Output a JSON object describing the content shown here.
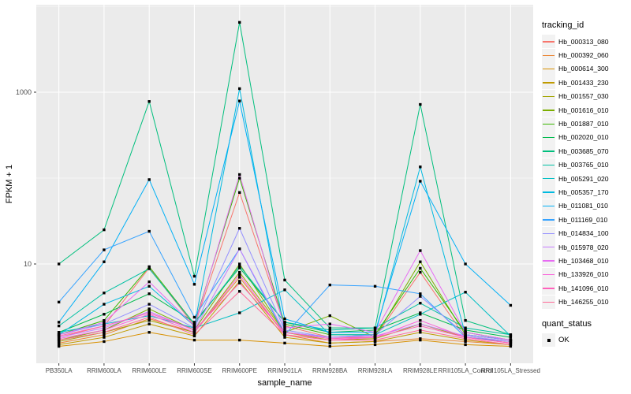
{
  "chart_data": {
    "type": "line",
    "title": "",
    "xlabel": "sample_name",
    "ylabel": "FPKM + 1",
    "y_scale": "log10",
    "y_axis_ticks": [
      {
        "label": "10",
        "value": 10
      },
      {
        "label": "1000",
        "value": 1000
      }
    ],
    "y_minor_gridlines": [
      100,
      10000
    ],
    "legend_position": "right",
    "panel_bg": "#EBEBEB",
    "grid_color": "#FFFFFF",
    "tick_label_color": "#4D4D4D",
    "point_marker": "black-square",
    "series_legend_title": "tracking_id",
    "point_legend": {
      "title": "quant_status",
      "items": [
        {
          "label": "OK",
          "marker": "black-square"
        }
      ]
    },
    "categories": [
      "PB350LA",
      "RRIM600LA",
      "RRIM600LE",
      "RRIM600SE",
      "RRIM600PE",
      "RRIM901LA",
      "RRIM928BA",
      "RRIM928LA",
      "RRIM928LE",
      "RRII105LA_Control",
      "RRII105LA_Stressed"
    ],
    "series": [
      {
        "name": "Hb_000313_080",
        "color": "#F8766D",
        "values": [
          1.4,
          1.9,
          9.0,
          1.9,
          68,
          1.9,
          1.4,
          1.4,
          8.0,
          1.4,
          1.2
        ]
      },
      {
        "name": "Hb_000392_060",
        "color": "#EA8331",
        "values": [
          1.2,
          1.5,
          2.3,
          1.6,
          7.0,
          1.5,
          1.2,
          1.25,
          1.35,
          1.25,
          1.15
        ]
      },
      {
        "name": "Hb_000614_300",
        "color": "#D89000",
        "values": [
          1.1,
          1.25,
          1.6,
          1.3,
          1.3,
          1.2,
          1.1,
          1.15,
          1.3,
          1.15,
          1.1
        ]
      },
      {
        "name": "Hb_001433_230",
        "color": "#C09B00",
        "values": [
          1.15,
          1.4,
          2.0,
          1.45,
          6.3,
          1.4,
          1.2,
          1.25,
          1.6,
          1.3,
          1.15
        ]
      },
      {
        "name": "Hb_001557_030",
        "color": "#A3A500",
        "values": [
          1.25,
          1.6,
          2.2,
          1.6,
          8.0,
          1.6,
          1.3,
          1.35,
          2.0,
          1.4,
          1.25
        ]
      },
      {
        "name": "Hb_001616_010",
        "color": "#7CAE00",
        "values": [
          1.3,
          1.7,
          3.0,
          1.7,
          10,
          1.6,
          2.5,
          1.4,
          10.6,
          1.5,
          1.3
        ]
      },
      {
        "name": "Hb_001887_010",
        "color": "#39B600",
        "values": [
          1.5,
          2.2,
          9.3,
          2.0,
          100,
          2.0,
          1.5,
          1.5,
          8.9,
          1.6,
          1.3
        ]
      },
      {
        "name": "Hb_002020_010",
        "color": "#00BB4E",
        "values": [
          1.6,
          2.6,
          4.5,
          2.1,
          9.0,
          2.1,
          1.6,
          1.7,
          2.7,
          1.7,
          1.4
        ]
      },
      {
        "name": "Hb_003685_070",
        "color": "#00BF7D",
        "values": [
          10,
          25,
          780,
          7.2,
          6500,
          6.5,
          1.8,
          1.8,
          720,
          2.2,
          1.5
        ]
      },
      {
        "name": "Hb_003765_010",
        "color": "#00C1A3",
        "values": [
          1.9,
          4.6,
          8.8,
          2.0,
          9.5,
          2.1,
          1.7,
          1.8,
          3.5,
          1.8,
          1.5
        ]
      },
      {
        "name": "Hb_005291_020",
        "color": "#00BFC4",
        "values": [
          1.6,
          2.0,
          2.5,
          1.8,
          2.7,
          5.0,
          1.5,
          1.5,
          2.6,
          4.7,
          1.45
        ]
      },
      {
        "name": "Hb_005357_170",
        "color": "#00BAE0",
        "values": [
          1.5,
          3.4,
          5.5,
          1.9,
          1100,
          1.6,
          1.4,
          1.5,
          135,
          1.5,
          1.3
        ]
      },
      {
        "name": "Hb_011081_010",
        "color": "#00B0F6",
        "values": [
          2.1,
          10.6,
          96,
          5.8,
          790,
          2.3,
          1.6,
          1.6,
          92,
          10,
          3.3
        ]
      },
      {
        "name": "Hb_011169_010",
        "color": "#35A2FF",
        "values": [
          3.6,
          14.6,
          24,
          2.4,
          15,
          1.5,
          5.7,
          5.5,
          4.5,
          1.4,
          1.25
        ]
      },
      {
        "name": "Hb_014834_100",
        "color": "#9590FF",
        "values": [
          1.5,
          2.0,
          3.4,
          1.8,
          26,
          1.7,
          1.4,
          1.5,
          4.2,
          1.5,
          1.3
        ]
      },
      {
        "name": "Hb_015978_020",
        "color": "#C77CFF",
        "values": [
          1.4,
          1.8,
          2.8,
          1.7,
          15,
          1.6,
          1.4,
          1.45,
          2.0,
          1.45,
          1.25
        ]
      },
      {
        "name": "Hb_103468_010",
        "color": "#E76BF3",
        "values": [
          1.5,
          2.1,
          6.2,
          1.9,
          110,
          1.8,
          2.0,
          1.6,
          14.3,
          1.6,
          1.3
        ]
      },
      {
        "name": "Hb_133926_010",
        "color": "#FA62DB",
        "values": [
          1.35,
          1.7,
          2.6,
          1.6,
          7.5,
          1.5,
          1.3,
          1.4,
          2.2,
          1.4,
          1.2
        ]
      },
      {
        "name": "Hb_141096_010",
        "color": "#FF62BC",
        "values": [
          1.45,
          1.9,
          2.7,
          1.7,
          6.0,
          1.6,
          1.35,
          1.4,
          1.9,
          1.4,
          1.2
        ]
      },
      {
        "name": "Hb_146255_010",
        "color": "#FF6A98",
        "values": [
          1.3,
          1.6,
          2.4,
          1.5,
          4.8,
          1.5,
          1.3,
          1.3,
          1.7,
          1.35,
          1.15
        ]
      }
    ]
  }
}
